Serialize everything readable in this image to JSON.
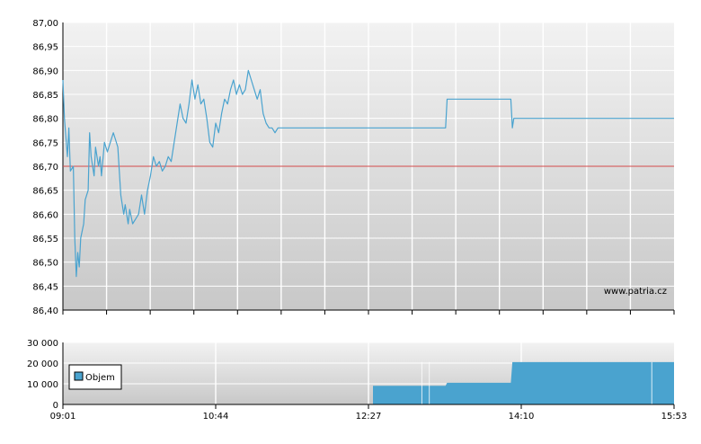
{
  "watermark": "www.patria.cz",
  "colors": {
    "price_line": "#4aa3cf",
    "reference_line": "#d24a4a",
    "volume_bar": "#4aa3cf",
    "grid": "#ffffff",
    "axis": "#000000",
    "plot_bg_top": "#f2f2f2",
    "plot_bg_bottom": "#c8c8c8"
  },
  "x_ticks": [
    "09:01",
    "10:44",
    "12:27",
    "14:10",
    "15:53"
  ],
  "chart_data": [
    {
      "type": "line",
      "ylim": [
        86.4,
        87.0
      ],
      "y_ticks": [
        "86,40",
        "86,45",
        "86,50",
        "86,55",
        "86,60",
        "86,65",
        "86,70",
        "86,75",
        "86,80",
        "86,85",
        "86,90",
        "86,95",
        "87,00"
      ],
      "reference_value": 86.7,
      "grid": true,
      "series": [
        {
          "points": [
            [
              "09:01",
              86.88
            ],
            [
              "09:02",
              86.8
            ],
            [
              "09:04",
              86.72
            ],
            [
              "09:05",
              86.78
            ],
            [
              "09:06",
              86.69
            ],
            [
              "09:08",
              86.7
            ],
            [
              "09:09",
              86.55
            ],
            [
              "09:10",
              86.47
            ],
            [
              "09:11",
              86.52
            ],
            [
              "09:12",
              86.49
            ],
            [
              "09:13",
              86.55
            ],
            [
              "09:15",
              86.58
            ],
            [
              "09:16",
              86.63
            ],
            [
              "09:18",
              86.65
            ],
            [
              "09:19",
              86.77
            ],
            [
              "09:20",
              86.72
            ],
            [
              "09:22",
              86.68
            ],
            [
              "09:23",
              86.74
            ],
            [
              "09:25",
              86.7
            ],
            [
              "09:26",
              86.72
            ],
            [
              "09:27",
              86.68
            ],
            [
              "09:29",
              86.75
            ],
            [
              "09:31",
              86.73
            ],
            [
              "09:33",
              86.75
            ],
            [
              "09:35",
              86.77
            ],
            [
              "09:36",
              86.76
            ],
            [
              "09:38",
              86.74
            ],
            [
              "09:40",
              86.64
            ],
            [
              "09:42",
              86.6
            ],
            [
              "09:43",
              86.62
            ],
            [
              "09:45",
              86.58
            ],
            [
              "09:46",
              86.61
            ],
            [
              "09:48",
              86.58
            ],
            [
              "09:50",
              86.59
            ],
            [
              "09:52",
              86.6
            ],
            [
              "09:54",
              86.64
            ],
            [
              "09:56",
              86.6
            ],
            [
              "09:58",
              86.65
            ],
            [
              "10:00",
              86.68
            ],
            [
              "10:02",
              86.72
            ],
            [
              "10:04",
              86.7
            ],
            [
              "10:06",
              86.71
            ],
            [
              "10:08",
              86.69
            ],
            [
              "10:10",
              86.7
            ],
            [
              "10:12",
              86.72
            ],
            [
              "10:14",
              86.71
            ],
            [
              "10:16",
              86.75
            ],
            [
              "10:18",
              86.79
            ],
            [
              "10:20",
              86.83
            ],
            [
              "10:22",
              86.8
            ],
            [
              "10:24",
              86.79
            ],
            [
              "10:26",
              86.83
            ],
            [
              "10:28",
              86.88
            ],
            [
              "10:30",
              86.84
            ],
            [
              "10:32",
              86.87
            ],
            [
              "10:34",
              86.83
            ],
            [
              "10:36",
              86.84
            ],
            [
              "10:38",
              86.8
            ],
            [
              "10:40",
              86.75
            ],
            [
              "10:42",
              86.74
            ],
            [
              "10:44",
              86.79
            ],
            [
              "10:46",
              86.77
            ],
            [
              "10:48",
              86.81
            ],
            [
              "10:50",
              86.84
            ],
            [
              "10:52",
              86.83
            ],
            [
              "10:54",
              86.86
            ],
            [
              "10:56",
              86.88
            ],
            [
              "10:58",
              86.85
            ],
            [
              "11:00",
              86.87
            ],
            [
              "11:02",
              86.85
            ],
            [
              "11:04",
              86.86
            ],
            [
              "11:06",
              86.9
            ],
            [
              "11:08",
              86.88
            ],
            [
              "11:10",
              86.86
            ],
            [
              "11:12",
              86.84
            ],
            [
              "11:14",
              86.86
            ],
            [
              "11:16",
              86.81
            ],
            [
              "11:18",
              86.79
            ],
            [
              "11:20",
              86.78
            ],
            [
              "11:22",
              86.78
            ],
            [
              "11:24",
              86.77
            ],
            [
              "11:26",
              86.78
            ],
            [
              "11:28",
              86.78
            ],
            [
              "12:00",
              86.78
            ],
            [
              "12:30",
              86.78
            ],
            [
              "13:00",
              86.78
            ],
            [
              "13:19",
              86.78
            ],
            [
              "13:20",
              86.84
            ],
            [
              "13:40",
              86.84
            ],
            [
              "14:00",
              86.84
            ],
            [
              "14:03",
              86.84
            ],
            [
              "14:04",
              86.78
            ],
            [
              "14:05",
              86.8
            ],
            [
              "14:40",
              86.8
            ],
            [
              "15:20",
              86.8
            ],
            [
              "15:53",
              86.8
            ]
          ]
        }
      ]
    },
    {
      "type": "bar",
      "ylim": [
        0,
        30000
      ],
      "y_ticks": [
        "0",
        "10 000",
        "20 000",
        "30 000"
      ],
      "legend_position": "left",
      "grid": true,
      "series": [
        {
          "name": "Objem",
          "steps": [
            [
              "12:30",
              9000
            ],
            [
              "13:19",
              9000
            ],
            [
              "13:20",
              10500
            ],
            [
              "14:03",
              10500
            ],
            [
              "14:04",
              20500
            ],
            [
              "15:53",
              20500
            ]
          ]
        }
      ]
    }
  ]
}
